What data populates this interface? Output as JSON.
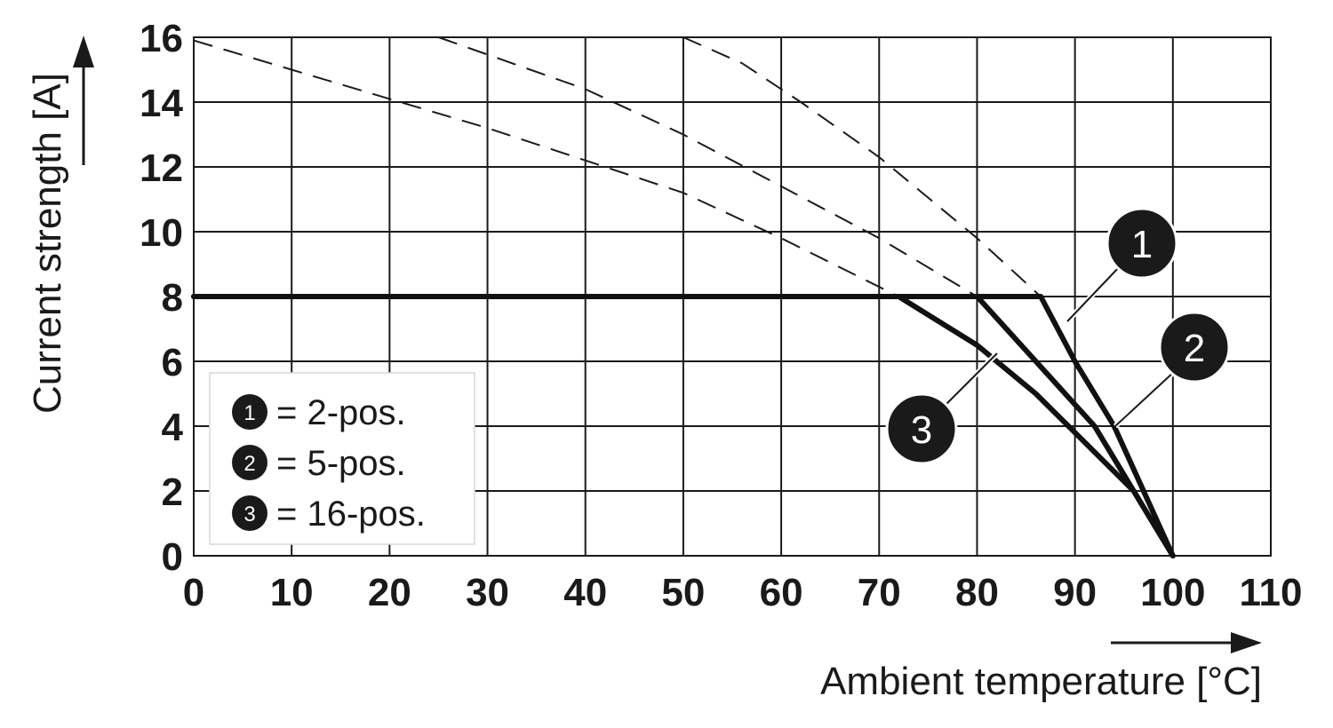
{
  "chart_data": {
    "type": "line",
    "xlabel": "Ambient temperature [°C]",
    "ylabel": "Current strength [A]",
    "xlim": [
      0,
      110
    ],
    "ylim": [
      0,
      16
    ],
    "x_ticks": [
      "0",
      "10",
      "20",
      "30",
      "40",
      "50",
      "60",
      "70",
      "80",
      "90",
      "100",
      "110"
    ],
    "y_ticks": [
      "0",
      "2",
      "4",
      "6",
      "8",
      "10",
      "12",
      "14",
      "16"
    ],
    "grid": true,
    "legend_placement": "bottom-left",
    "legend": [
      {
        "marker": "1",
        "label": "= 2-pos."
      },
      {
        "marker": "2",
        "label": "= 5-pos."
      },
      {
        "marker": "3",
        "label": "= 16-pos."
      }
    ],
    "series": [
      {
        "marker": "1",
        "style": "solid",
        "x": [
          0,
          86.5,
          90,
          94,
          97,
          100
        ],
        "y": [
          8,
          8,
          6,
          4,
          2,
          0
        ]
      },
      {
        "marker": "2",
        "style": "solid",
        "x": [
          0,
          80,
          86,
          92,
          96,
          100
        ],
        "y": [
          8,
          8,
          6,
          4,
          2,
          0
        ]
      },
      {
        "marker": "3",
        "style": "solid",
        "x": [
          0,
          72,
          80,
          86,
          91,
          96,
          100
        ],
        "y": [
          8,
          8,
          6.5,
          5,
          3.5,
          2,
          0
        ]
      },
      {
        "marker": "1",
        "style": "dashed",
        "x": [
          50,
          56,
          62,
          70,
          80,
          86.5
        ],
        "y": [
          16,
          15.2,
          14,
          12.3,
          9.8,
          8
        ]
      },
      {
        "marker": "2",
        "style": "dashed",
        "x": [
          25,
          40,
          50,
          60,
          70,
          80
        ],
        "y": [
          16,
          14.4,
          13,
          11.4,
          9.8,
          8
        ]
      },
      {
        "marker": "3",
        "style": "dashed",
        "x": [
          0,
          10,
          20,
          30,
          40,
          50,
          60,
          72
        ],
        "y": [
          15.9,
          15,
          14.1,
          13.2,
          12.2,
          11.2,
          9.8,
          8
        ]
      }
    ],
    "callouts": [
      "1",
      "2",
      "3"
    ]
  }
}
